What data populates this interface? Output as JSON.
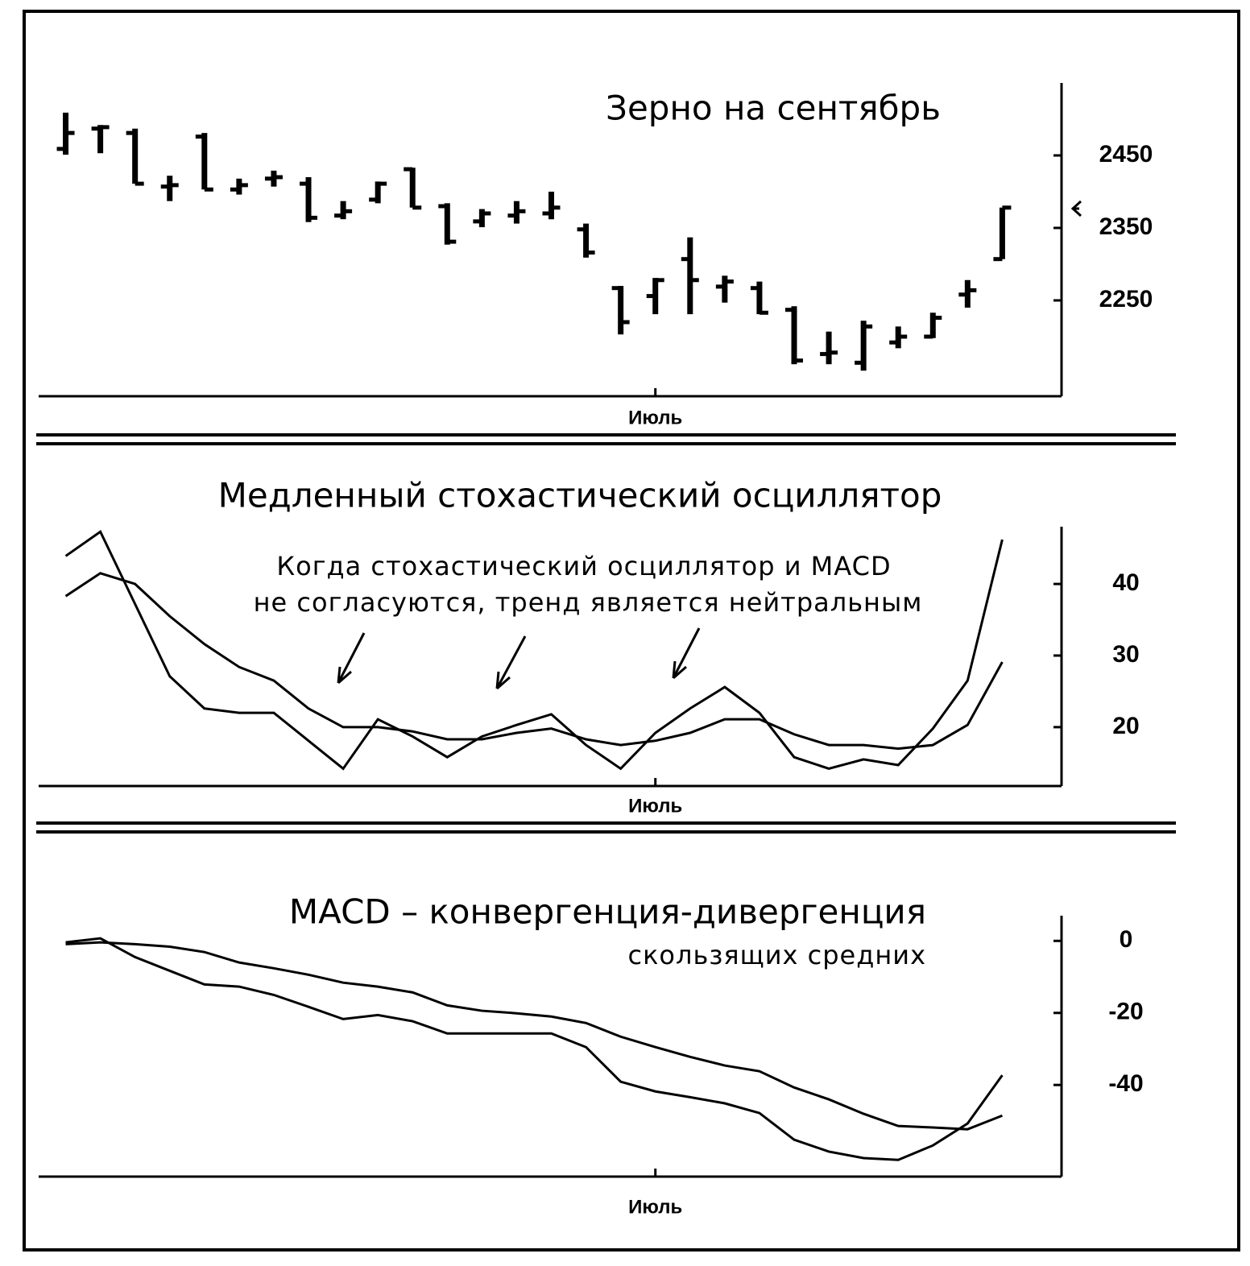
{
  "chart_data": [
    {
      "type": "ohlc",
      "title": "Зерно на сентябрь",
      "categories": [
        null,
        null,
        null,
        null,
        null,
        null,
        null,
        null,
        null,
        null,
        null,
        null,
        null,
        null,
        null,
        null,
        null,
        "Июль",
        null,
        null,
        null,
        null,
        null,
        null,
        null,
        null,
        null,
        null
      ],
      "open": [
        2459,
        2487,
        2481,
        2407,
        2476,
        2403,
        2418,
        2411,
        2367,
        2389,
        2431,
        2380,
        2359,
        2367,
        2370,
        2348,
        2267,
        2256,
        2307,
        2269,
        2267,
        2237,
        2176,
        2164,
        2192,
        2200,
        2258,
        2307
      ],
      "high": [
        2509,
        2492,
        2487,
        2422,
        2481,
        2418,
        2429,
        2420,
        2387,
        2414,
        2433,
        2384,
        2376,
        2387,
        2400,
        2356,
        2270,
        2281,
        2337,
        2284,
        2276,
        2242,
        2207,
        2222,
        2214,
        2233,
        2278,
        2378
      ],
      "low": [
        2451,
        2453,
        2411,
        2387,
        2403,
        2396,
        2407,
        2358,
        2362,
        2384,
        2378,
        2327,
        2351,
        2356,
        2362,
        2309,
        2203,
        2231,
        2231,
        2247,
        2231,
        2162,
        2162,
        2153,
        2184,
        2198,
        2240,
        2307
      ],
      "close": [
        2481,
        2489,
        2411,
        2409,
        2403,
        2409,
        2420,
        2364,
        2373,
        2411,
        2378,
        2331,
        2370,
        2373,
        2378,
        2316,
        2220,
        2278,
        2278,
        2276,
        2233,
        2167,
        2178,
        2214,
        2200,
        2226,
        2264,
        2378
      ],
      "color": "#000000",
      "ylim": [
        2120,
        2550
      ],
      "yticks": [
        2250,
        2350,
        2450
      ]
    },
    {
      "type": "line",
      "title": "Медленный стохастический осциллятор",
      "annotations": [
        "Когда стохастический осциллятор и MACD",
        "не согласуются, тренд является нейтральным"
      ],
      "categories": [
        null,
        null,
        null,
        null,
        null,
        null,
        null,
        null,
        null,
        null,
        null,
        null,
        null,
        null,
        null,
        null,
        null,
        "Июль",
        null,
        null,
        null,
        null,
        null,
        null,
        null,
        null,
        null,
        null
      ],
      "series": [
        {
          "color": "#000000",
          "values": [
            43.9,
            47.3,
            37.2,
            27.1,
            22.6,
            22.0,
            22.0,
            18.1,
            14.2,
            21.1,
            18.7,
            15.8,
            18.7,
            20.3,
            21.8,
            17.5,
            14.2,
            19.2,
            22.6,
            25.6,
            22.0,
            15.8,
            14.2,
            15.5,
            14.7,
            19.8,
            26.5,
            46.2
          ]
        },
        {
          "color": "#000000",
          "values": [
            38.3,
            41.5,
            40.0,
            35.5,
            31.6,
            28.4,
            26.5,
            22.6,
            20.0,
            20.0,
            19.4,
            18.3,
            18.3,
            19.2,
            19.8,
            18.3,
            17.5,
            18.1,
            19.2,
            21.1,
            21.1,
            19.0,
            17.5,
            17.5,
            17.0,
            17.5,
            20.3,
            29.1
          ]
        }
      ],
      "ylim": [
        12,
        48
      ],
      "yticks": [
        20,
        30,
        40
      ]
    },
    {
      "type": "line",
      "title": "MACD – конвергенция-дивергенция",
      "subtitle": "скользящих средних",
      "categories": [
        null,
        null,
        null,
        null,
        null,
        null,
        null,
        null,
        null,
        null,
        null,
        null,
        null,
        null,
        null,
        null,
        null,
        "Июль",
        null,
        null,
        null,
        null,
        null,
        null,
        null,
        null,
        null,
        null
      ],
      "series": [
        {
          "color": "#000000",
          "values": [
            -0.4,
            0.7,
            -4.5,
            -8.3,
            -12.1,
            -12.7,
            -15.0,
            -18.3,
            -21.7,
            -20.6,
            -22.3,
            -25.7,
            -25.7,
            -25.7,
            -25.7,
            -29.5,
            -39.1,
            -41.8,
            -43.4,
            -45.1,
            -47.8,
            -55.2,
            -58.5,
            -60.3,
            -60.8,
            -56.8,
            -50.7,
            -37.3
          ]
        },
        {
          "color": "#000000",
          "values": [
            -0.9,
            -0.4,
            -0.9,
            -1.6,
            -3.1,
            -6.0,
            -7.6,
            -9.4,
            -11.6,
            -12.7,
            -14.3,
            -17.9,
            -19.4,
            -20.1,
            -21.0,
            -22.8,
            -26.6,
            -29.5,
            -32.2,
            -34.6,
            -36.2,
            -40.7,
            -44.0,
            -48.0,
            -51.4,
            -51.8,
            -52.3,
            -48.5
          ]
        }
      ],
      "ylim": [
        -65,
        7
      ],
      "yticks": [
        -40,
        -20,
        0
      ]
    }
  ]
}
